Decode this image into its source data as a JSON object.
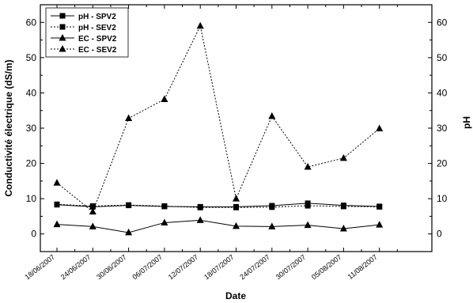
{
  "chart_data": {
    "type": "line",
    "xlabel": "Date",
    "ylabel_left": "Conductivité électrique (dS/m)",
    "ylabel_right": "pH",
    "categories": [
      "18/06/2007",
      "24/06/2007",
      "30/06/2007",
      "06/07/2007",
      "12/07/2007",
      "18/07/2007",
      "24/07/2007",
      "30/07/2007",
      "05/08/2007",
      "11/08/2007"
    ],
    "ylim": [
      -5,
      65
    ],
    "yticks": [
      0,
      10,
      20,
      30,
      40,
      50,
      60
    ],
    "grid": false,
    "legend_position": "top-left",
    "series": [
      {
        "name": "pH - SPV2",
        "marker": "square",
        "dash": "solid",
        "values": [
          8.3,
          7.7,
          8.1,
          7.8,
          7.7,
          7.7,
          8.0,
          8.7,
          8.1,
          7.8
        ]
      },
      {
        "name": "pH - SEV2",
        "marker": "square",
        "dash": "dotted",
        "values": [
          8.4,
          7.9,
          8.2,
          7.9,
          7.5,
          7.5,
          7.6,
          8.0,
          7.8,
          7.7
        ]
      },
      {
        "name": "EC - SPV2",
        "marker": "triangle",
        "dash": "solid",
        "values": [
          2.7,
          2.1,
          0.4,
          3.2,
          3.9,
          2.2,
          2.1,
          2.5,
          1.5,
          2.6
        ]
      },
      {
        "name": "EC - SEV2",
        "marker": "triangle",
        "dash": "dotted",
        "values": [
          14.5,
          6.3,
          32.8,
          38.2,
          59.0,
          10.0,
          33.4,
          19.0,
          21.5,
          29.9
        ]
      }
    ]
  }
}
